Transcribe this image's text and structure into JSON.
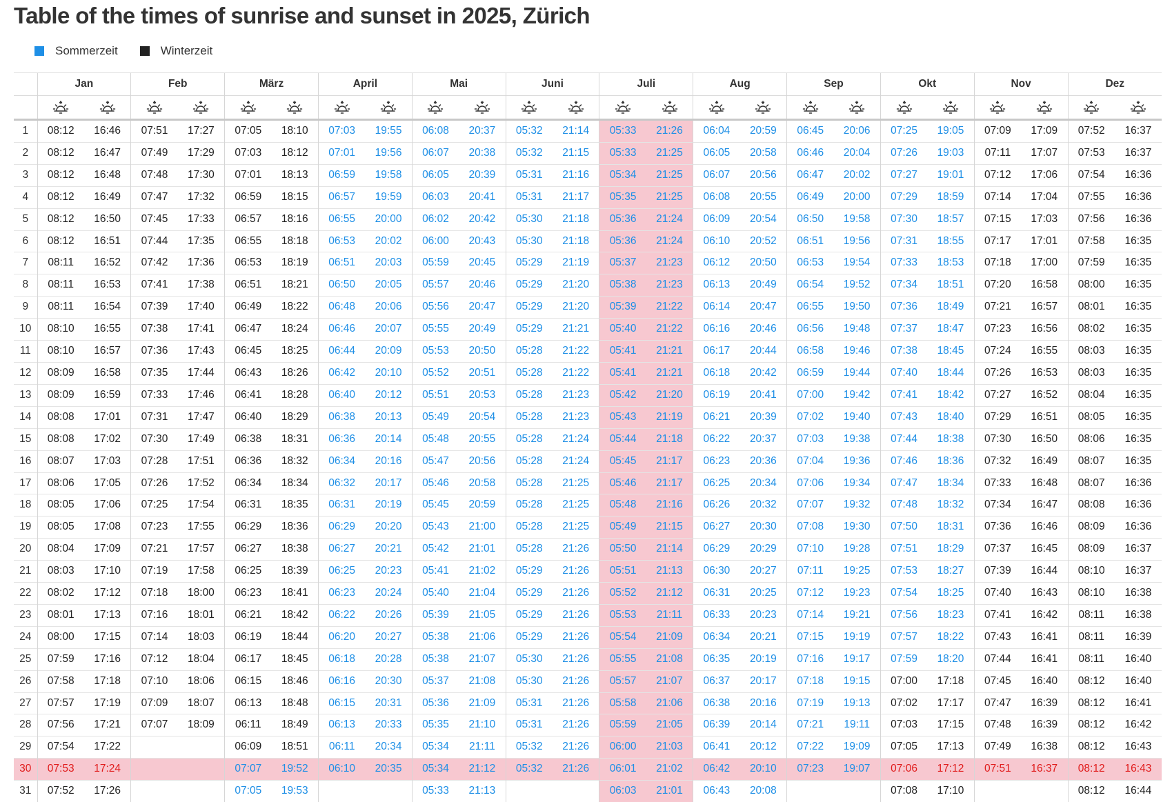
{
  "page": {
    "title": "Table of the times of sunrise and sunset in 2025, Zürich"
  },
  "legend": [
    {
      "label": "Sommerzeit",
      "color": "#1e8fe6"
    },
    {
      "label": "Winterzeit",
      "color": "#222222"
    }
  ],
  "months": [
    "Jan",
    "Feb",
    "März",
    "April",
    "Mai",
    "Juni",
    "Juli",
    "Aug",
    "Sep",
    "Okt",
    "Nov",
    "Dez"
  ],
  "icons": {
    "sunrise": "sunrise-icon",
    "sunset": "sunset-icon"
  },
  "highlight": {
    "month_index": 6,
    "day": 30,
    "background": "#f7c8d0",
    "today_text_color": "#e01b1b"
  },
  "colors": {
    "summer": "#1e8fe6",
    "winter": "#222222"
  },
  "table": {
    "days": [
      "1",
      "2",
      "3",
      "4",
      "5",
      "6",
      "7",
      "8",
      "9",
      "10",
      "11",
      "12",
      "13",
      "14",
      "15",
      "16",
      "17",
      "18",
      "19",
      "20",
      "21",
      "22",
      "23",
      "24",
      "25",
      "26",
      "27",
      "28",
      "29",
      "30",
      "31"
    ],
    "data": [
      {
        "rise": [
          "08:12",
          "08:12",
          "08:12",
          "08:12",
          "08:12",
          "08:12",
          "08:11",
          "08:11",
          "08:11",
          "08:10",
          "08:10",
          "08:09",
          "08:09",
          "08:08",
          "08:08",
          "08:07",
          "08:06",
          "08:05",
          "08:05",
          "08:04",
          "08:03",
          "08:02",
          "08:01",
          "08:00",
          "07:59",
          "07:58",
          "07:57",
          "07:56",
          "07:54",
          "07:53",
          "07:52"
        ],
        "set": [
          "16:46",
          "16:47",
          "16:48",
          "16:49",
          "16:50",
          "16:51",
          "16:52",
          "16:53",
          "16:54",
          "16:55",
          "16:57",
          "16:58",
          "16:59",
          "17:01",
          "17:02",
          "17:03",
          "17:05",
          "17:06",
          "17:08",
          "17:09",
          "17:10",
          "17:12",
          "17:13",
          "17:15",
          "17:16",
          "17:18",
          "17:19",
          "17:21",
          "17:22",
          "17:24",
          "17:26"
        ]
      },
      {
        "rise": [
          "07:51",
          "07:49",
          "07:48",
          "07:47",
          "07:45",
          "07:44",
          "07:42",
          "07:41",
          "07:39",
          "07:38",
          "07:36",
          "07:35",
          "07:33",
          "07:31",
          "07:30",
          "07:28",
          "07:26",
          "07:25",
          "07:23",
          "07:21",
          "07:19",
          "07:18",
          "07:16",
          "07:14",
          "07:12",
          "07:10",
          "07:09",
          "07:07",
          "",
          "",
          ""
        ],
        "set": [
          "17:27",
          "17:29",
          "17:30",
          "17:32",
          "17:33",
          "17:35",
          "17:36",
          "17:38",
          "17:40",
          "17:41",
          "17:43",
          "17:44",
          "17:46",
          "17:47",
          "17:49",
          "17:51",
          "17:52",
          "17:54",
          "17:55",
          "17:57",
          "17:58",
          "18:00",
          "18:01",
          "18:03",
          "18:04",
          "18:06",
          "18:07",
          "18:09",
          "",
          "",
          ""
        ]
      },
      {
        "rise": [
          "07:05",
          "07:03",
          "07:01",
          "06:59",
          "06:57",
          "06:55",
          "06:53",
          "06:51",
          "06:49",
          "06:47",
          "06:45",
          "06:43",
          "06:41",
          "06:40",
          "06:38",
          "06:36",
          "06:34",
          "06:31",
          "06:29",
          "06:27",
          "06:25",
          "06:23",
          "06:21",
          "06:19",
          "06:17",
          "06:15",
          "06:13",
          "06:11",
          "06:09",
          "07:07",
          "07:05"
        ],
        "set": [
          "18:10",
          "18:12",
          "18:13",
          "18:15",
          "18:16",
          "18:18",
          "18:19",
          "18:21",
          "18:22",
          "18:24",
          "18:25",
          "18:26",
          "18:28",
          "18:29",
          "18:31",
          "18:32",
          "18:34",
          "18:35",
          "18:36",
          "18:38",
          "18:39",
          "18:41",
          "18:42",
          "18:44",
          "18:45",
          "18:46",
          "18:48",
          "18:49",
          "18:51",
          "19:52",
          "19:53"
        ]
      },
      {
        "rise": [
          "07:03",
          "07:01",
          "06:59",
          "06:57",
          "06:55",
          "06:53",
          "06:51",
          "06:50",
          "06:48",
          "06:46",
          "06:44",
          "06:42",
          "06:40",
          "06:38",
          "06:36",
          "06:34",
          "06:32",
          "06:31",
          "06:29",
          "06:27",
          "06:25",
          "06:23",
          "06:22",
          "06:20",
          "06:18",
          "06:16",
          "06:15",
          "06:13",
          "06:11",
          "06:10",
          ""
        ],
        "set": [
          "19:55",
          "19:56",
          "19:58",
          "19:59",
          "20:00",
          "20:02",
          "20:03",
          "20:05",
          "20:06",
          "20:07",
          "20:09",
          "20:10",
          "20:12",
          "20:13",
          "20:14",
          "20:16",
          "20:17",
          "20:19",
          "20:20",
          "20:21",
          "20:23",
          "20:24",
          "20:26",
          "20:27",
          "20:28",
          "20:30",
          "20:31",
          "20:33",
          "20:34",
          "20:35",
          ""
        ]
      },
      {
        "rise": [
          "06:08",
          "06:07",
          "06:05",
          "06:03",
          "06:02",
          "06:00",
          "05:59",
          "05:57",
          "05:56",
          "05:55",
          "05:53",
          "05:52",
          "05:51",
          "05:49",
          "05:48",
          "05:47",
          "05:46",
          "05:45",
          "05:43",
          "05:42",
          "05:41",
          "05:40",
          "05:39",
          "05:38",
          "05:38",
          "05:37",
          "05:36",
          "05:35",
          "05:34",
          "05:34",
          "05:33"
        ],
        "set": [
          "20:37",
          "20:38",
          "20:39",
          "20:41",
          "20:42",
          "20:43",
          "20:45",
          "20:46",
          "20:47",
          "20:49",
          "20:50",
          "20:51",
          "20:53",
          "20:54",
          "20:55",
          "20:56",
          "20:58",
          "20:59",
          "21:00",
          "21:01",
          "21:02",
          "21:04",
          "21:05",
          "21:06",
          "21:07",
          "21:08",
          "21:09",
          "21:10",
          "21:11",
          "21:12",
          "21:13"
        ]
      },
      {
        "rise": [
          "05:32",
          "05:32",
          "05:31",
          "05:31",
          "05:30",
          "05:30",
          "05:29",
          "05:29",
          "05:29",
          "05:29",
          "05:28",
          "05:28",
          "05:28",
          "05:28",
          "05:28",
          "05:28",
          "05:28",
          "05:28",
          "05:28",
          "05:28",
          "05:29",
          "05:29",
          "05:29",
          "05:29",
          "05:30",
          "05:30",
          "05:31",
          "05:31",
          "05:32",
          "05:32",
          ""
        ],
        "set": [
          "21:14",
          "21:15",
          "21:16",
          "21:17",
          "21:18",
          "21:18",
          "21:19",
          "21:20",
          "21:20",
          "21:21",
          "21:22",
          "21:22",
          "21:23",
          "21:23",
          "21:24",
          "21:24",
          "21:25",
          "21:25",
          "21:25",
          "21:26",
          "21:26",
          "21:26",
          "21:26",
          "21:26",
          "21:26",
          "21:26",
          "21:26",
          "21:26",
          "21:26",
          "21:26",
          ""
        ]
      },
      {
        "rise": [
          "05:33",
          "05:33",
          "05:34",
          "05:35",
          "05:36",
          "05:36",
          "05:37",
          "05:38",
          "05:39",
          "05:40",
          "05:41",
          "05:41",
          "05:42",
          "05:43",
          "05:44",
          "05:45",
          "05:46",
          "05:48",
          "05:49",
          "05:50",
          "05:51",
          "05:52",
          "05:53",
          "05:54",
          "05:55",
          "05:57",
          "05:58",
          "05:59",
          "06:00",
          "06:01",
          "06:03"
        ],
        "set": [
          "21:26",
          "21:25",
          "21:25",
          "21:25",
          "21:24",
          "21:24",
          "21:23",
          "21:23",
          "21:22",
          "21:22",
          "21:21",
          "21:21",
          "21:20",
          "21:19",
          "21:18",
          "21:17",
          "21:17",
          "21:16",
          "21:15",
          "21:14",
          "21:13",
          "21:12",
          "21:11",
          "21:09",
          "21:08",
          "21:07",
          "21:06",
          "21:05",
          "21:03",
          "21:02",
          "21:01"
        ]
      },
      {
        "rise": [
          "06:04",
          "06:05",
          "06:07",
          "06:08",
          "06:09",
          "06:10",
          "06:12",
          "06:13",
          "06:14",
          "06:16",
          "06:17",
          "06:18",
          "06:19",
          "06:21",
          "06:22",
          "06:23",
          "06:25",
          "06:26",
          "06:27",
          "06:29",
          "06:30",
          "06:31",
          "06:33",
          "06:34",
          "06:35",
          "06:37",
          "06:38",
          "06:39",
          "06:41",
          "06:42",
          "06:43"
        ],
        "set": [
          "20:59",
          "20:58",
          "20:56",
          "20:55",
          "20:54",
          "20:52",
          "20:50",
          "20:49",
          "20:47",
          "20:46",
          "20:44",
          "20:42",
          "20:41",
          "20:39",
          "20:37",
          "20:36",
          "20:34",
          "20:32",
          "20:30",
          "20:29",
          "20:27",
          "20:25",
          "20:23",
          "20:21",
          "20:19",
          "20:17",
          "20:16",
          "20:14",
          "20:12",
          "20:10",
          "20:08"
        ]
      },
      {
        "rise": [
          "06:45",
          "06:46",
          "06:47",
          "06:49",
          "06:50",
          "06:51",
          "06:53",
          "06:54",
          "06:55",
          "06:56",
          "06:58",
          "06:59",
          "07:00",
          "07:02",
          "07:03",
          "07:04",
          "07:06",
          "07:07",
          "07:08",
          "07:10",
          "07:11",
          "07:12",
          "07:14",
          "07:15",
          "07:16",
          "07:18",
          "07:19",
          "07:21",
          "07:22",
          "07:23",
          ""
        ],
        "set": [
          "20:06",
          "20:04",
          "20:02",
          "20:00",
          "19:58",
          "19:56",
          "19:54",
          "19:52",
          "19:50",
          "19:48",
          "19:46",
          "19:44",
          "19:42",
          "19:40",
          "19:38",
          "19:36",
          "19:34",
          "19:32",
          "19:30",
          "19:28",
          "19:25",
          "19:23",
          "19:21",
          "19:19",
          "19:17",
          "19:15",
          "19:13",
          "19:11",
          "19:09",
          "19:07",
          ""
        ]
      },
      {
        "rise": [
          "07:25",
          "07:26",
          "07:27",
          "07:29",
          "07:30",
          "07:31",
          "07:33",
          "07:34",
          "07:36",
          "07:37",
          "07:38",
          "07:40",
          "07:41",
          "07:43",
          "07:44",
          "07:46",
          "07:47",
          "07:48",
          "07:50",
          "07:51",
          "07:53",
          "07:54",
          "07:56",
          "07:57",
          "07:59",
          "07:00",
          "07:02",
          "07:03",
          "07:05",
          "07:06",
          "07:08"
        ],
        "set": [
          "19:05",
          "19:03",
          "19:01",
          "18:59",
          "18:57",
          "18:55",
          "18:53",
          "18:51",
          "18:49",
          "18:47",
          "18:45",
          "18:44",
          "18:42",
          "18:40",
          "18:38",
          "18:36",
          "18:34",
          "18:32",
          "18:31",
          "18:29",
          "18:27",
          "18:25",
          "18:23",
          "18:22",
          "18:20",
          "17:18",
          "17:17",
          "17:15",
          "17:13",
          "17:12",
          "17:10"
        ]
      },
      {
        "rise": [
          "07:09",
          "07:11",
          "07:12",
          "07:14",
          "07:15",
          "07:17",
          "07:18",
          "07:20",
          "07:21",
          "07:23",
          "07:24",
          "07:26",
          "07:27",
          "07:29",
          "07:30",
          "07:32",
          "07:33",
          "07:34",
          "07:36",
          "07:37",
          "07:39",
          "07:40",
          "07:41",
          "07:43",
          "07:44",
          "07:45",
          "07:47",
          "07:48",
          "07:49",
          "07:51",
          ""
        ],
        "set": [
          "17:09",
          "17:07",
          "17:06",
          "17:04",
          "17:03",
          "17:01",
          "17:00",
          "16:58",
          "16:57",
          "16:56",
          "16:55",
          "16:53",
          "16:52",
          "16:51",
          "16:50",
          "16:49",
          "16:48",
          "16:47",
          "16:46",
          "16:45",
          "16:44",
          "16:43",
          "16:42",
          "16:41",
          "16:41",
          "16:40",
          "16:39",
          "16:39",
          "16:38",
          "16:37",
          ""
        ]
      },
      {
        "rise": [
          "07:52",
          "07:53",
          "07:54",
          "07:55",
          "07:56",
          "07:58",
          "07:59",
          "08:00",
          "08:01",
          "08:02",
          "08:03",
          "08:03",
          "08:04",
          "08:05",
          "08:06",
          "08:07",
          "08:07",
          "08:08",
          "08:09",
          "08:09",
          "08:10",
          "08:10",
          "08:11",
          "08:11",
          "08:11",
          "08:12",
          "08:12",
          "08:12",
          "08:12",
          "08:12",
          "08:12"
        ],
        "set": [
          "16:37",
          "16:37",
          "16:36",
          "16:36",
          "16:36",
          "16:35",
          "16:35",
          "16:35",
          "16:35",
          "16:35",
          "16:35",
          "16:35",
          "16:35",
          "16:35",
          "16:35",
          "16:35",
          "16:36",
          "16:36",
          "16:36",
          "16:37",
          "16:37",
          "16:38",
          "16:38",
          "16:39",
          "16:40",
          "16:40",
          "16:41",
          "16:42",
          "16:43",
          "16:43",
          "16:44"
        ]
      }
    ]
  }
}
